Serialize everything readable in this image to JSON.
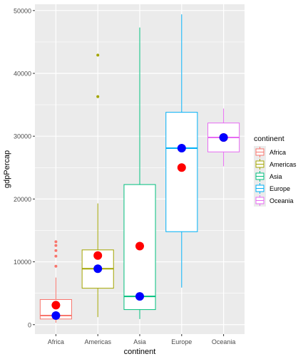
{
  "chart_data": {
    "type": "boxplot",
    "title": "",
    "xlabel": "continent",
    "ylabel": "gdpPercap",
    "categories": [
      "Africa",
      "Americas",
      "Asia",
      "Europe",
      "Oceania"
    ],
    "ylim": [
      -1500,
      51000
    ],
    "yticks": [
      0,
      10000,
      20000,
      30000,
      40000,
      50000
    ],
    "ytick_labels": [
      "0",
      "10000",
      "20000",
      "30000",
      "40000",
      "50000"
    ],
    "colors": [
      "#F8766D",
      "#A3A500",
      "#00BF7D",
      "#00B0F6",
      "#E76BF3"
    ],
    "boxes": [
      {
        "category": "Africa",
        "whisker_low": 300,
        "q1": 900,
        "median": 1450,
        "q3": 4000,
        "whisker_high": 7500,
        "outliers": [
          9300,
          10900,
          11800,
          12600,
          13200
        ]
      },
      {
        "category": "Americas",
        "whisker_low": 1200,
        "q1": 5800,
        "median": 8900,
        "q3": 11900,
        "whisker_high": 19300,
        "outliers": [
          36300,
          42900
        ]
      },
      {
        "category": "Asia",
        "whisker_low": 900,
        "q1": 2400,
        "median": 4500,
        "q3": 22300,
        "whisker_high": 47300,
        "outliers": []
      },
      {
        "category": "Europe",
        "whisker_low": 5900,
        "q1": 14800,
        "median": 28100,
        "q3": 33800,
        "whisker_high": 49400,
        "outliers": []
      },
      {
        "category": "Oceania",
        "whisker_low": 25200,
        "q1": 27500,
        "median": 29800,
        "q3": 32100,
        "whisker_high": 34400,
        "outliers": []
      }
    ],
    "mean_points": {
      "color": "#FF0000",
      "values": [
        3100,
        11000,
        12500,
        25000,
        29800
      ]
    },
    "median_points": {
      "color": "#0000FF",
      "values": [
        1450,
        8900,
        4500,
        28100,
        29800
      ]
    },
    "legend": {
      "title": "continent",
      "position": "right",
      "entries": [
        "Africa",
        "Americas",
        "Asia",
        "Europe",
        "Oceania"
      ]
    },
    "panel_background": "#EBEBEB",
    "grid": true
  }
}
